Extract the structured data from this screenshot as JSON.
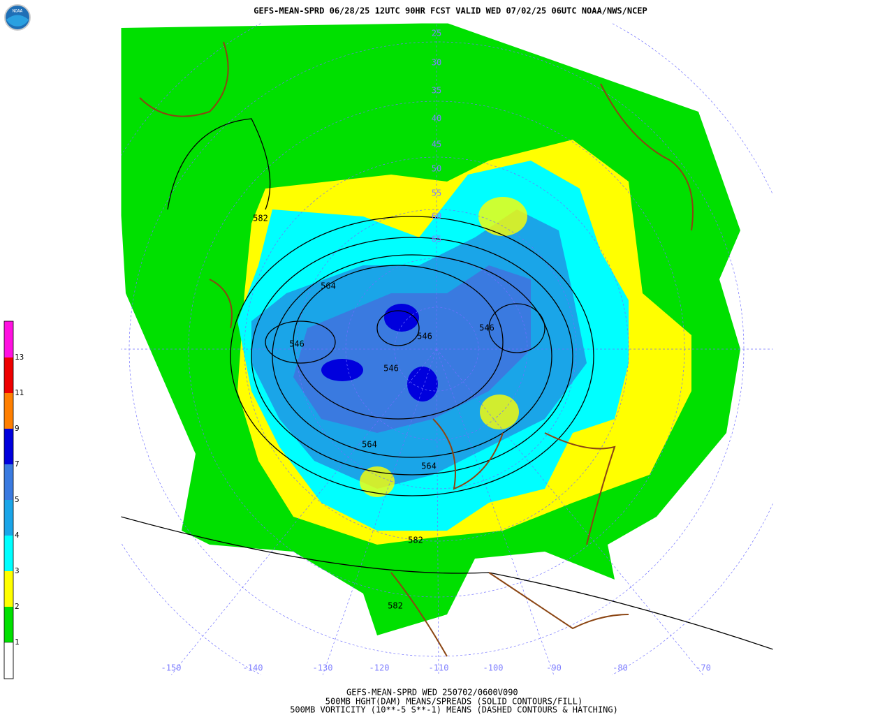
{
  "header": {
    "title": "GEFS-MEAN-SPRD 06/28/25 12UTC 90HR FCST VALID WED 07/02/25 06UTC NOAA/NWS/NCEP",
    "logo": "NOAA"
  },
  "legend": {
    "labels": [
      13,
      11,
      9,
      7,
      5,
      4,
      3,
      2,
      1
    ]
  },
  "map": {
    "latitude_labels": [
      25,
      30,
      35,
      40,
      45,
      50,
      55,
      60,
      65
    ],
    "longitude_labels": [
      -150,
      -140,
      -130,
      -120,
      -110,
      -100,
      -90,
      -80,
      -70
    ],
    "contour_labels": [
      582,
      564,
      546,
      546,
      546,
      546,
      564,
      564,
      582,
      582
    ]
  },
  "footer": {
    "lines": [
      "GEFS-MEAN-SPRD WED 250702/0600V090",
      "500MB HGHT(DAM) MEANS/SPREADS (SOLID CONTOURS/FILL)",
      "500MB VORTICITY (10**-5 S**-1) MEANS (DASHED CONTOURS & HATCHING)"
    ]
  }
}
